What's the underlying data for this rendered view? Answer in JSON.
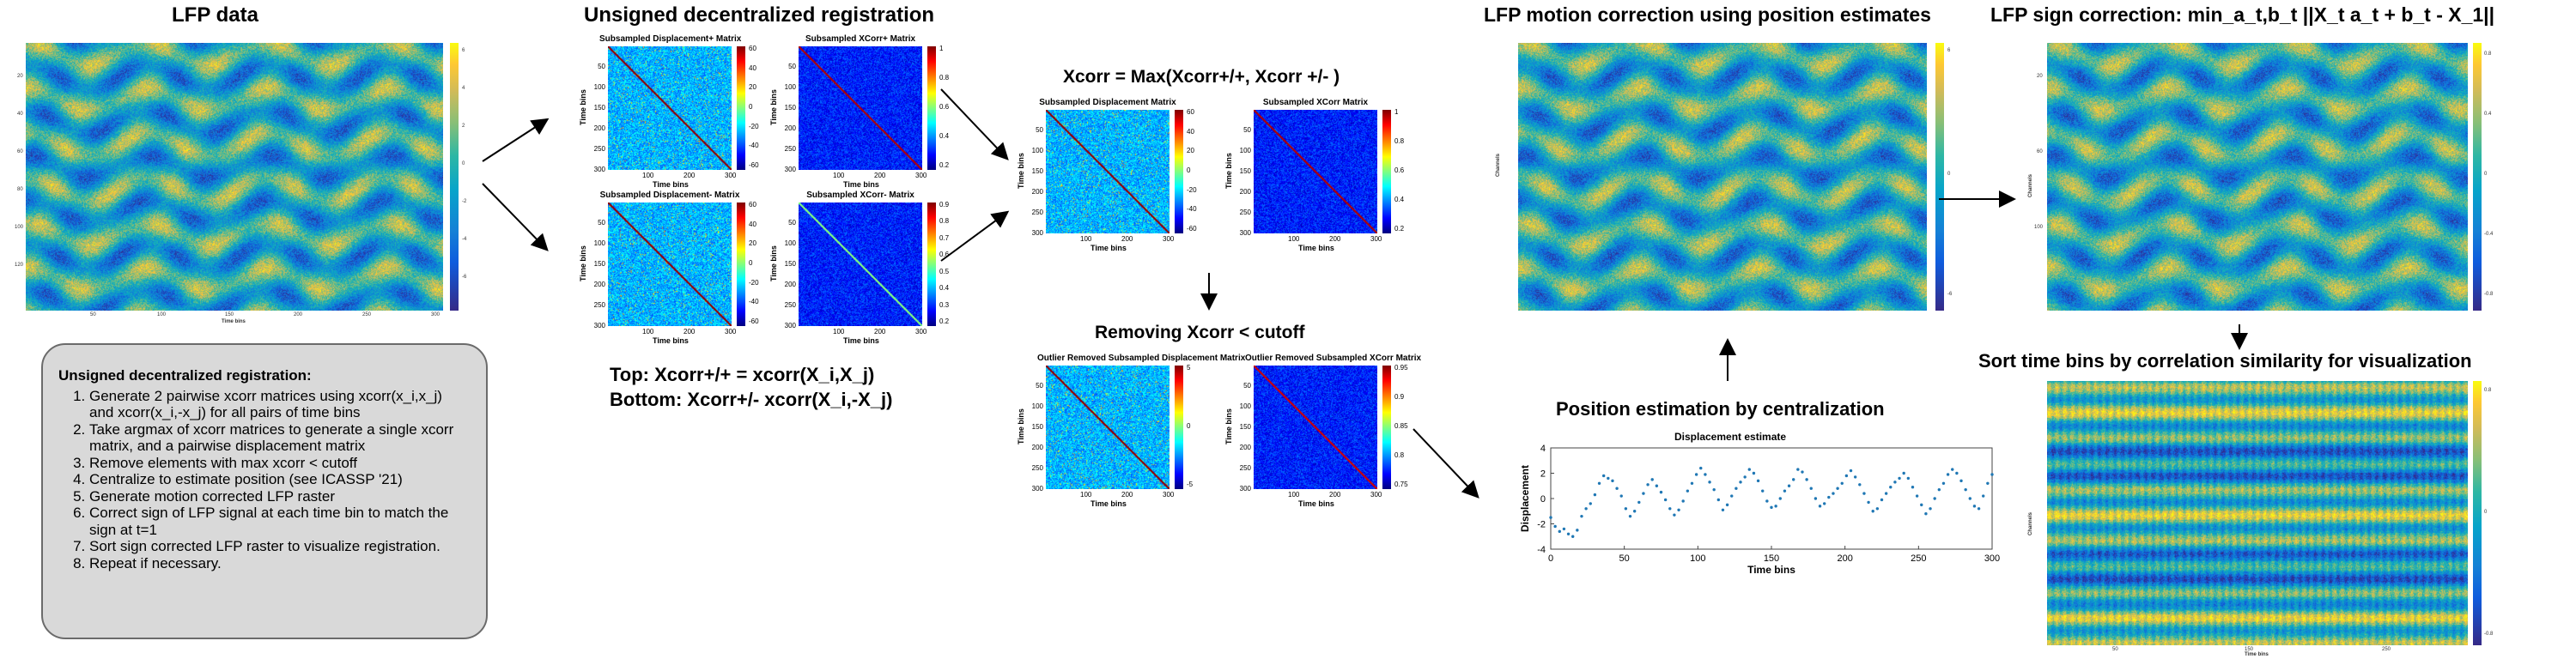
{
  "headings": {
    "lfp_data": "LFP data",
    "unsigned_reg": "Unsigned decentralized registration",
    "xcorr_max": "Xcorr = Max(Xcorr+/+, Xcorr +/- )",
    "removing": "Removing Xcorr < cutoff",
    "motion_correction": "LFP motion correction using position estimates",
    "sign_correction": "LFP sign correction: min_a_t,b_t ||X_t a_t + b_t - X_1||",
    "position_estimation": "Position estimation by centralization",
    "sort": "Sort time bins by correlation similarity for visualization"
  },
  "formula": {
    "top": "Top: Xcorr+/+ = xcorr(X_i,X_j)",
    "bottom": "Bottom: Xcorr+/- xcorr(X_i,-X_j)"
  },
  "info_box": {
    "title": "Unsigned decentralized registration:",
    "steps": [
      "Generate 2 pairwise xcorr matrices using xcorr(x_i,x_j) and xcorr(x_i,-x_j) for all pairs of time bins",
      "Take argmax of xcorr matrices to generate a single xcorr matrix, and a pairwise displacement matrix",
      "Remove elements with max xcorr < cutoff",
      "Centralize to estimate position (see ICASSP '21)",
      "Generate motion corrected LFP raster",
      "Correct sign of LFP signal at each time bin to match the sign at t=1",
      "Sort sign corrected LFP raster to visualize registration.",
      "Repeat if necessary."
    ]
  },
  "raster": {
    "xlabel": "Time bins",
    "ylabel": "Channels",
    "x_ticks": [
      "50",
      "100",
      "150",
      "200",
      "250",
      "300"
    ],
    "y_ticks": [
      "20",
      "40",
      "60",
      "80",
      "100",
      "120"
    ],
    "cbar_ticks_a": [
      "6",
      "4",
      "2",
      "0",
      "-2",
      "-4",
      "-6"
    ],
    "cbar_ticks_b": [
      "0.8",
      "0.6",
      "0.4",
      "0.2",
      "0",
      "-0.2",
      "-0.4",
      "-0.6",
      "-0.8"
    ]
  },
  "matrices": {
    "xlabel": "Time bins",
    "ylabel": "Time bins",
    "axis_ticks": [
      "50",
      "100",
      "150",
      "200",
      "250",
      "300"
    ],
    "axis_ticks_x": [
      "100",
      "200",
      "300"
    ],
    "items": [
      {
        "title": "Subsampled Displacement+ Matrix",
        "cbar": [
          "60",
          "40",
          "20",
          "0",
          "-20",
          "-40",
          "-60"
        ]
      },
      {
        "title": "Subsampled XCorr+ Matrix",
        "cbar": [
          "1",
          "0.8",
          "0.6",
          "0.4",
          "0.2"
        ]
      },
      {
        "title": "Subsampled Displacement- Matrix",
        "cbar": [
          "60",
          "40",
          "20",
          "0",
          "-20",
          "-40",
          "-60"
        ]
      },
      {
        "title": "Subsampled XCorr- Matrix",
        "cbar": [
          "0.9",
          "0.8",
          "0.7",
          "0.6",
          "0.5",
          "0.4",
          "0.3",
          "0.2"
        ]
      },
      {
        "title": "Subsampled Displacement Matrix",
        "cbar": [
          "60",
          "40",
          "20",
          "0",
          "-20",
          "-40",
          "-60"
        ]
      },
      {
        "title": "Subsampled XCorr Matrix",
        "cbar": [
          "1",
          "0.8",
          "0.6",
          "0.4",
          "0.2"
        ]
      },
      {
        "title": "Outlier Removed Subsampled Displacement Matrix",
        "cbar": [
          "5",
          "0",
          "-5"
        ]
      },
      {
        "title": "Outlier Removed Subsampled XCorr Matrix",
        "cbar": [
          "0.95",
          "0.9",
          "0.85",
          "0.8",
          "0.75"
        ]
      }
    ]
  },
  "chart_data": {
    "type": "scatter",
    "title": "Displacement estimate",
    "xlabel": "Time bins",
    "ylabel": "Displacement",
    "xlim": [
      0,
      300
    ],
    "ylim": [
      -4,
      4
    ],
    "x_ticks": [
      0,
      50,
      100,
      150,
      200,
      250,
      300
    ],
    "y_ticks": [
      -4,
      -2,
      0,
      2,
      4
    ],
    "color": "#1f77b4",
    "x": [
      0,
      3,
      6,
      9,
      12,
      15,
      18,
      21,
      24,
      27,
      30,
      33,
      36,
      39,
      42,
      45,
      48,
      51,
      54,
      57,
      60,
      63,
      66,
      69,
      72,
      75,
      78,
      81,
      84,
      87,
      90,
      93,
      96,
      99,
      102,
      105,
      108,
      111,
      114,
      117,
      120,
      123,
      126,
      129,
      132,
      135,
      138,
      141,
      144,
      147,
      150,
      153,
      156,
      159,
      162,
      165,
      168,
      171,
      174,
      177,
      180,
      183,
      186,
      189,
      192,
      195,
      198,
      201,
      204,
      207,
      210,
      213,
      216,
      219,
      222,
      225,
      228,
      231,
      234,
      237,
      240,
      243,
      246,
      249,
      252,
      255,
      258,
      261,
      264,
      267,
      270,
      273,
      276,
      279,
      282,
      285,
      288,
      291,
      294,
      297,
      300
    ],
    "y": [
      -1.5,
      -2.2,
      -2.6,
      -2.4,
      -2.8,
      -3.0,
      -2.5,
      -1.4,
      -0.8,
      -0.4,
      0.3,
      1.2,
      1.8,
      1.6,
      1.4,
      0.8,
      0.2,
      -0.8,
      -1.4,
      -1.0,
      -0.3,
      0.4,
      1.1,
      1.5,
      1.0,
      0.5,
      -0.1,
      -0.8,
      -1.3,
      -0.9,
      -0.2,
      0.6,
      1.2,
      1.9,
      2.4,
      1.9,
      1.3,
      0.7,
      -0.1,
      -0.9,
      -0.5,
      0.2,
      0.8,
      1.3,
      1.7,
      2.3,
      2.0,
      1.4,
      0.6,
      -0.2,
      -0.7,
      -0.6,
      0.0,
      0.6,
      1.0,
      1.5,
      2.3,
      2.1,
      1.5,
      0.8,
      0.0,
      -0.6,
      -0.4,
      0.1,
      0.4,
      0.8,
      1.2,
      1.8,
      2.2,
      1.7,
      1.1,
      0.4,
      -0.3,
      -1.0,
      -0.8,
      -0.1,
      0.4,
      0.9,
      1.3,
      1.6,
      2.0,
      1.6,
      0.9,
      0.2,
      -0.5,
      -1.2,
      -0.8,
      0.0,
      0.7,
      1.2,
      1.9,
      2.3,
      2.0,
      1.4,
      0.7,
      0.0,
      -0.6,
      -0.8,
      0.2,
      1.2,
      1.9
    ]
  }
}
